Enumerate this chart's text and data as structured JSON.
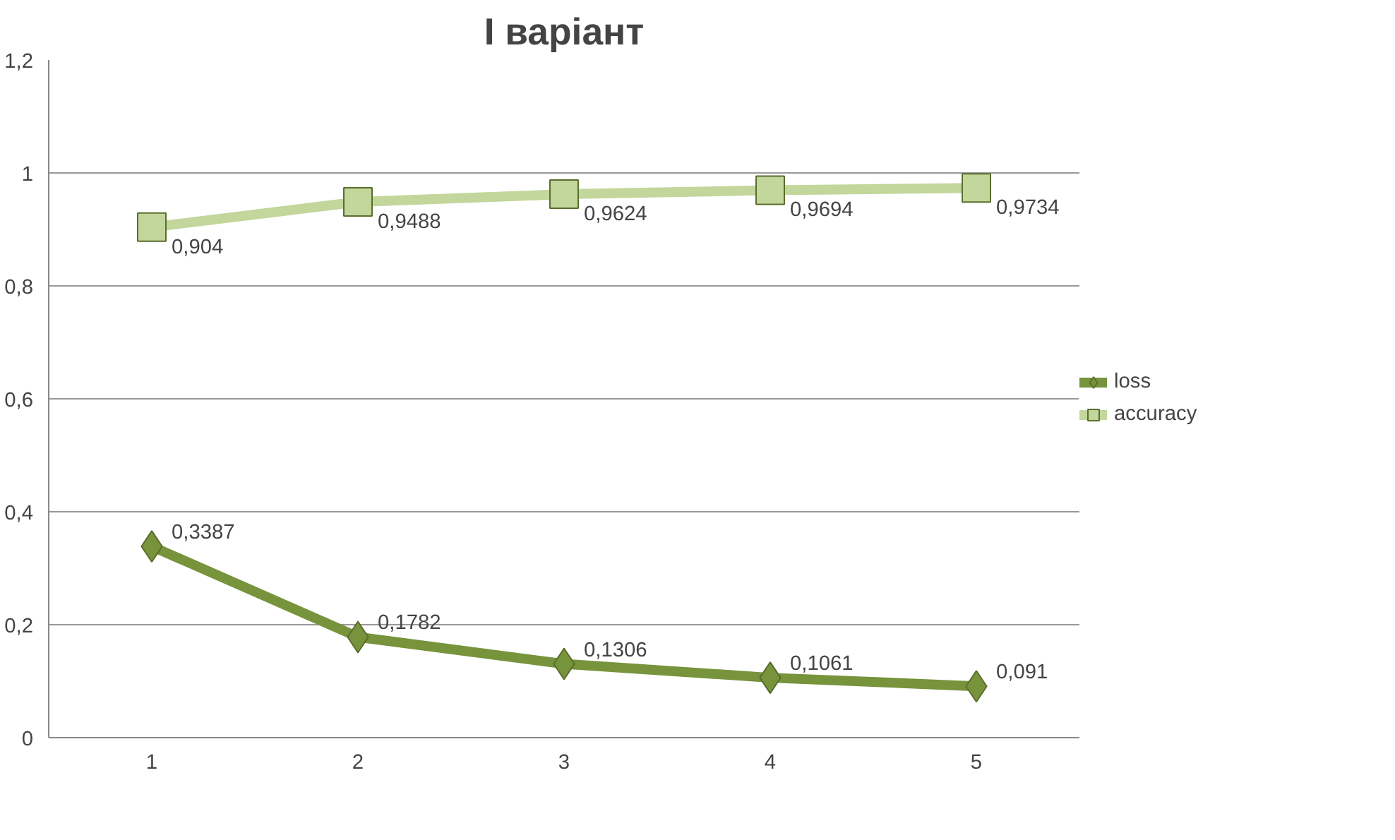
{
  "chart_data": {
    "type": "line",
    "title": "I варіант",
    "categories": [
      "1",
      "2",
      "3",
      "4",
      "5"
    ],
    "series": [
      {
        "name": "loss",
        "color": "#77933c",
        "marker": "diamond",
        "values": [
          0.3387,
          0.1782,
          0.1306,
          0.1061,
          0.091
        ],
        "value_labels": [
          "0,3387",
          "0,1782",
          "0,1306",
          "0,1061",
          "0,091"
        ]
      },
      {
        "name": "accuracy",
        "color": "#c3d69b",
        "marker": "square",
        "values": [
          0.904,
          0.9488,
          0.9624,
          0.9694,
          0.9734
        ],
        "value_labels": [
          "0,904",
          "0,9488",
          "0,9624",
          "0,9694",
          "0,9734"
        ]
      }
    ],
    "ylim": [
      0,
      1.2
    ],
    "yticks": [
      {
        "value": 0,
        "label": "0"
      },
      {
        "value": 0.2,
        "label": "0,2"
      },
      {
        "value": 0.4,
        "label": "0,4"
      },
      {
        "value": 0.6,
        "label": "0,6"
      },
      {
        "value": 0.8,
        "label": "0,8"
      },
      {
        "value": 1,
        "label": "1"
      },
      {
        "value": 1.2,
        "label": "1,2"
      }
    ],
    "grid": "y",
    "legend": "right",
    "line_style": "solid"
  }
}
